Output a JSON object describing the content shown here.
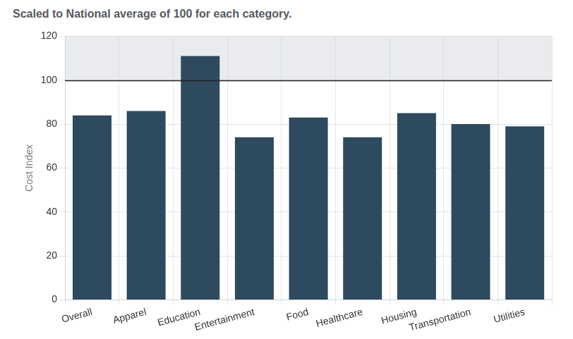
{
  "chart_data": {
    "type": "bar",
    "title": "Scaled to National average of 100 for each category.",
    "y_label": "Cost Index",
    "categories": [
      "Overall",
      "Apparel",
      "Education",
      "Entertainment",
      "Food",
      "Healthcare",
      "Housing",
      "Transportation",
      "Utilities"
    ],
    "values": [
      84,
      86,
      111,
      74,
      83,
      74,
      85,
      80,
      79
    ],
    "color": "#2e4a5f",
    "reference_line": 100,
    "ylim": [
      0,
      120
    ],
    "yticks": [
      0,
      20,
      40,
      60,
      80,
      100,
      120
    ],
    "grid": true
  }
}
